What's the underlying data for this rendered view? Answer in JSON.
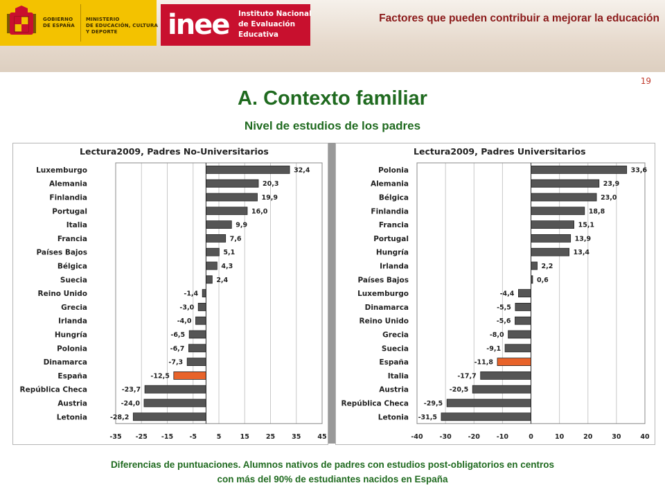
{
  "header": {
    "gov_line1": "GOBIERNO",
    "gov_line2": "DE ESPAÑA",
    "ministry_line1": "MINISTERIO",
    "ministry_line2": "DE EDUCACIÓN, CULTURA",
    "ministry_line3": "Y DEPORTE",
    "inee_logo": "inee",
    "inee_line1": "Instituto Nacional",
    "inee_line2": "de Evaluación",
    "inee_line3": "Educativa",
    "slide_topic": "Factores que pueden contribuir a mejorar la educación",
    "page_number": "19"
  },
  "title": "A. Contexto familiar",
  "subtitle": "Nivel de estudios de los padres",
  "caption_line1": "Diferencias de puntuaciones. Alumnos nativos de padres con estudios post-obligatorios en centros",
  "caption_line2": "con más del 90% de estudiantes nacidos en España",
  "colors": {
    "bar": "#555555",
    "highlight": "#e8632a",
    "title_green": "#1f6a1f"
  },
  "chart_data": [
    {
      "type": "bar",
      "orientation": "horizontal",
      "title": "Lectura2009, Padres No-Universitarios",
      "highlight": "España",
      "xlim": [
        -35,
        45
      ],
      "xticks": [
        -35,
        -25,
        -15,
        -5,
        5,
        15,
        25,
        35,
        45
      ],
      "grid": true,
      "categories": [
        "Luxemburgo",
        "Alemania",
        "Finlandia",
        "Portugal",
        "Italia",
        "Francia",
        "Países Bajos",
        "Bélgica",
        "Suecia",
        "Reino Unido",
        "Grecia",
        "Irlanda",
        "Hungría",
        "Polonia",
        "Dinamarca",
        "España",
        "República Checa",
        "Austria",
        "Letonia"
      ],
      "values": [
        32.4,
        20.3,
        19.9,
        16.0,
        9.9,
        7.6,
        5.1,
        4.3,
        2.4,
        -1.4,
        -3.0,
        -4.0,
        -6.5,
        -6.7,
        -7.3,
        -12.5,
        -23.7,
        -24.0,
        -28.2
      ],
      "labels": [
        "32,4",
        "20,3",
        "19,9",
        "16,0",
        "9,9",
        "7,6",
        "5,1",
        "4,3",
        "2,4",
        "-1,4",
        "-3,0",
        "-4,0",
        "-6,5",
        "-6,7",
        "-7,3",
        "-12,5",
        "-23,7",
        "-24,0",
        "-28,2"
      ]
    },
    {
      "type": "bar",
      "orientation": "horizontal",
      "title": "Lectura2009, Padres Universitarios",
      "highlight": "España",
      "xlim": [
        -40,
        40
      ],
      "xticks": [
        -40,
        -30,
        -20,
        -10,
        0,
        10,
        20,
        30,
        40
      ],
      "grid": true,
      "categories": [
        "Polonia",
        "Alemania",
        "Bélgica",
        "Finlandia",
        "Francia",
        "Portugal",
        "Hungría",
        "Irlanda",
        "Países Bajos",
        "Luxemburgo",
        "Dinamarca",
        "Reino Unido",
        "Grecia",
        "Suecia",
        "España",
        "Italia",
        "Austria",
        "República Checa",
        "Letonia"
      ],
      "values": [
        33.6,
        23.9,
        23.0,
        18.8,
        15.1,
        13.9,
        13.4,
        2.2,
        0.6,
        -4.4,
        -5.5,
        -5.6,
        -8.0,
        -9.1,
        -11.8,
        -17.7,
        -20.5,
        -29.5,
        -31.5
      ],
      "labels": [
        "33,6",
        "23,9",
        "23,0",
        "18,8",
        "15,1",
        "13,9",
        "13,4",
        "2,2",
        "0,6",
        "-4,4",
        "-5,5",
        "-5,6",
        "-8,0",
        "-9,1",
        "-11,8",
        "-17,7",
        "-20,5",
        "-29,5",
        "-31,5"
      ]
    }
  ]
}
